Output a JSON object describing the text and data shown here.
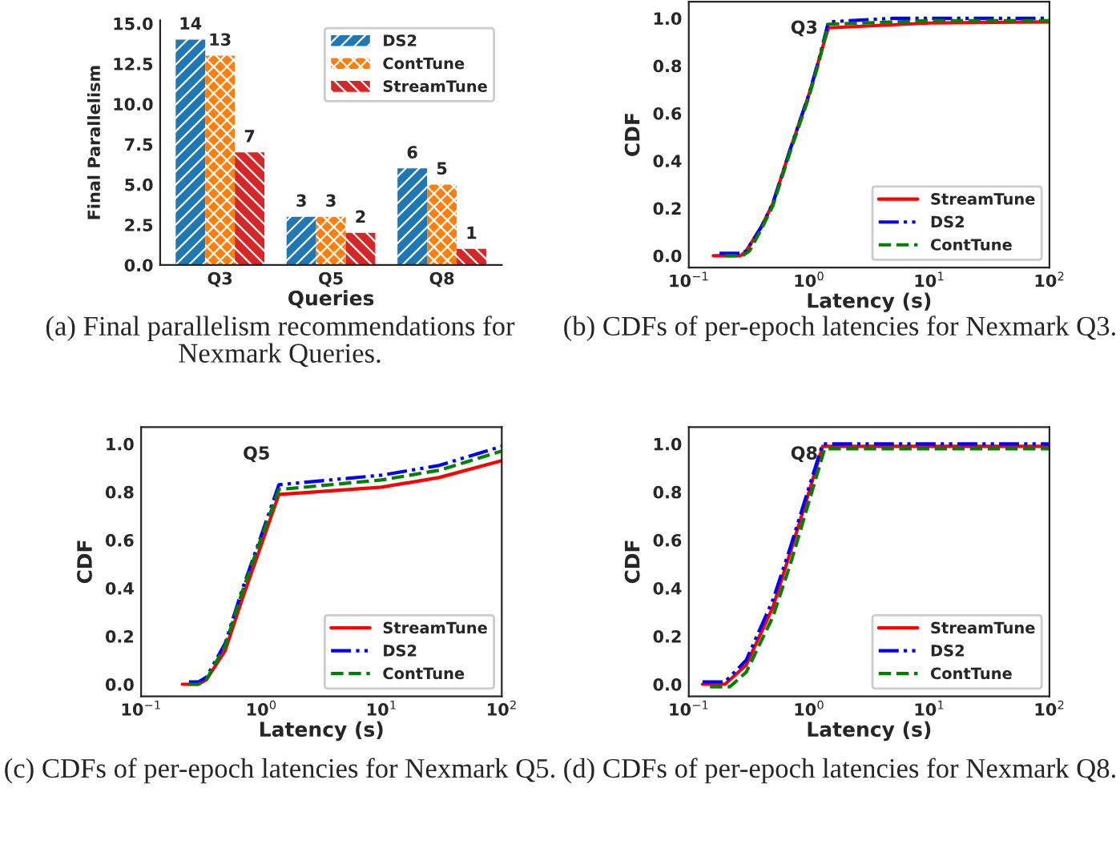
{
  "chart_data": [
    {
      "type": "bar",
      "xlabel": "Queries",
      "ylabel": "Final Parallelism",
      "categories": [
        "Q3",
        "Q5",
        "Q8"
      ],
      "series": [
        {
          "name": "DS2",
          "color": "#1f77b4",
          "values": [
            14,
            3,
            6
          ]
        },
        {
          "name": "ContTune",
          "color": "#ff7f0e",
          "values": [
            13,
            3,
            5
          ]
        },
        {
          "name": "StreamTune",
          "color": "#d62728",
          "values": [
            7,
            2,
            1
          ]
        }
      ],
      "ylim": [
        0,
        15.2
      ],
      "yticks": [
        {
          "value": 0,
          "label": "0.0"
        },
        {
          "value": 2.5,
          "label": "2.5"
        },
        {
          "value": 5,
          "label": "5.0"
        },
        {
          "value": 7.5,
          "label": "7.5"
        },
        {
          "value": 10,
          "label": "10.0"
        },
        {
          "value": 12.5,
          "label": "12.5"
        },
        {
          "value": 15,
          "label": "15.0"
        }
      ],
      "data_labels": true,
      "legend": "top right",
      "grid": false,
      "annotations": [
        "(a) Final parallelism recommendations for Nexmark Queries."
      ]
    },
    {
      "type": "line",
      "xlabel": "Latency (s)",
      "ylabel": "CDF",
      "log": "x",
      "series": [
        {
          "name": "StreamTune",
          "color": "#ff0000",
          "line_style": "solid",
          "x": [
            0.16,
            0.27,
            0.3,
            0.4,
            0.5,
            0.7,
            1.0,
            1.2,
            1.45,
            10,
            100
          ],
          "values": [
            0.0,
            0.0,
            0.02,
            0.12,
            0.22,
            0.45,
            0.68,
            0.82,
            0.96,
            0.98,
            0.985
          ]
        },
        {
          "name": "DS2",
          "color": "#0000ff",
          "line_style": "dashdot",
          "x": [
            0.18,
            0.27,
            0.3,
            0.4,
            0.5,
            0.7,
            1.0,
            1.2,
            1.45,
            5,
            100
          ],
          "values": [
            0.01,
            0.01,
            0.02,
            0.12,
            0.22,
            0.45,
            0.68,
            0.82,
            0.985,
            1.0,
            1.0
          ]
        },
        {
          "name": "ContTune",
          "color": "#008000",
          "line_style": "dashed",
          "x": [
            0.2,
            0.28,
            0.32,
            0.4,
            0.5,
            0.7,
            1.0,
            1.2,
            1.45,
            10,
            100
          ],
          "values": [
            0.0,
            0.0,
            0.02,
            0.11,
            0.21,
            0.44,
            0.67,
            0.81,
            0.975,
            0.99,
            0.99
          ]
        }
      ],
      "xlim": [
        0.1,
        100
      ],
      "xticks": [
        {
          "value": 0.1,
          "label": "10$^{−1}$"
        },
        {
          "value": 1,
          "label": "10$^{0}$"
        },
        {
          "value": 10,
          "label": "10$^{1}$"
        },
        {
          "value": 100,
          "label": "10$^{2}$"
        }
      ],
      "ylim": [
        -0.05,
        1.07
      ],
      "yticks": [
        {
          "value": 0,
          "label": "0.0"
        },
        {
          "value": 0.2,
          "label": "0.2"
        },
        {
          "value": 0.4,
          "label": "0.4"
        },
        {
          "value": 0.6,
          "label": "0.6"
        },
        {
          "value": 0.8,
          "label": "0.8"
        },
        {
          "value": 1.0,
          "label": "1.0"
        }
      ],
      "legend": "bottom right",
      "grid": false,
      "marker": "none",
      "annotations": [
        "Q3",
        "(b) CDFs of per-epoch latencies for Nexmark Q3."
      ]
    },
    {
      "type": "line",
      "xlabel": "Latency (s)",
      "ylabel": "CDF",
      "log": "x",
      "series": [
        {
          "name": "StreamTune",
          "color": "#ff0000",
          "line_style": "solid",
          "x": [
            0.22,
            0.3,
            0.35,
            0.5,
            0.7,
            1.0,
            1.4,
            2,
            10,
            30,
            100
          ],
          "values": [
            0.0,
            0.0,
            0.02,
            0.14,
            0.36,
            0.58,
            0.79,
            0.795,
            0.82,
            0.86,
            0.93
          ]
        },
        {
          "name": "DS2",
          "color": "#0000ff",
          "line_style": "dashdot",
          "x": [
            0.25,
            0.3,
            0.35,
            0.5,
            0.7,
            1.0,
            1.4,
            10,
            30,
            100
          ],
          "values": [
            0.01,
            0.01,
            0.03,
            0.17,
            0.4,
            0.62,
            0.83,
            0.87,
            0.91,
            0.99
          ]
        },
        {
          "name": "ContTune",
          "color": "#008000",
          "line_style": "dashed",
          "x": [
            0.25,
            0.3,
            0.35,
            0.5,
            0.7,
            1.0,
            1.4,
            10,
            30,
            100
          ],
          "values": [
            0.0,
            0.0,
            0.02,
            0.16,
            0.39,
            0.61,
            0.81,
            0.85,
            0.89,
            0.97
          ]
        }
      ],
      "xlim": [
        0.1,
        100
      ],
      "xticks": [
        {
          "value": 0.1,
          "label": "10$^{−1}$"
        },
        {
          "value": 1,
          "label": "10$^{0}$"
        },
        {
          "value": 10,
          "label": "10$^{1}$"
        },
        {
          "value": 100,
          "label": "10$^{2}$"
        }
      ],
      "ylim": [
        -0.05,
        1.07
      ],
      "yticks": [
        {
          "value": 0,
          "label": "0.0"
        },
        {
          "value": 0.2,
          "label": "0.2"
        },
        {
          "value": 0.4,
          "label": "0.4"
        },
        {
          "value": 0.6,
          "label": "0.6"
        },
        {
          "value": 0.8,
          "label": "0.8"
        },
        {
          "value": 1.0,
          "label": "1.0"
        }
      ],
      "legend": "bottom right",
      "grid": false,
      "marker": "none",
      "annotations": [
        "Q5",
        "(c) CDFs of per-epoch latencies for Nexmark Q5."
      ]
    },
    {
      "type": "line",
      "xlabel": "Latency (s)",
      "ylabel": "CDF",
      "log": "x",
      "series": [
        {
          "name": "StreamTune",
          "color": "#ff0000",
          "line_style": "solid",
          "x": [
            0.13,
            0.2,
            0.3,
            0.5,
            0.7,
            1.0,
            1.3,
            100
          ],
          "values": [
            0.0,
            0.0,
            0.08,
            0.32,
            0.55,
            0.8,
            0.99,
            0.99
          ]
        },
        {
          "name": "DS2",
          "color": "#0000ff",
          "line_style": "dashdot",
          "x": [
            0.13,
            0.2,
            0.3,
            0.5,
            0.7,
            1.0,
            1.3,
            100
          ],
          "values": [
            0.01,
            0.01,
            0.1,
            0.35,
            0.57,
            0.82,
            1.0,
            1.0
          ]
        },
        {
          "name": "ContTune",
          "color": "#008000",
          "line_style": "dashed",
          "x": [
            0.15,
            0.22,
            0.3,
            0.5,
            0.7,
            1.0,
            1.35,
            100
          ],
          "values": [
            -0.01,
            -0.01,
            0.05,
            0.28,
            0.5,
            0.76,
            0.98,
            0.98
          ]
        }
      ],
      "xlim": [
        0.1,
        100
      ],
      "xticks": [
        {
          "value": 0.1,
          "label": "10$^{−1}$"
        },
        {
          "value": 1,
          "label": "10$^{0}$"
        },
        {
          "value": 10,
          "label": "10$^{1}$"
        },
        {
          "value": 100,
          "label": "10$^{2}$"
        }
      ],
      "ylim": [
        -0.05,
        1.07
      ],
      "yticks": [
        {
          "value": 0,
          "label": "0.0"
        },
        {
          "value": 0.2,
          "label": "0.2"
        },
        {
          "value": 0.4,
          "label": "0.4"
        },
        {
          "value": 0.6,
          "label": "0.6"
        },
        {
          "value": 0.8,
          "label": "0.8"
        },
        {
          "value": 1.0,
          "label": "1.0"
        }
      ],
      "legend": "bottom right",
      "grid": false,
      "marker": "none",
      "annotations": [
        "Q8",
        "(d) CDFs of per-epoch latencies for Nexmark Q8."
      ]
    }
  ]
}
